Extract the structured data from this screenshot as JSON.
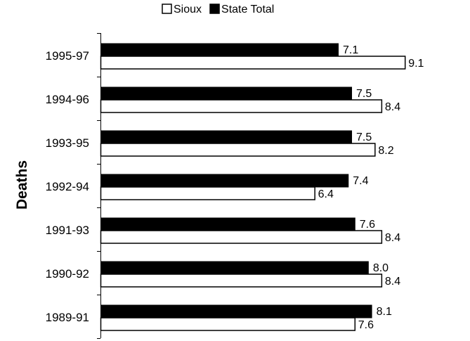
{
  "chart_data": {
    "type": "bar",
    "orientation": "horizontal",
    "title": "",
    "xlabel": "",
    "ylabel": "Deaths",
    "categories": [
      "1995-97",
      "1994-96",
      "1993-95",
      "1992-94",
      "1991-93",
      "1990-92",
      "1989-91"
    ],
    "series": [
      {
        "name": "State Total",
        "color": "#000000",
        "values": [
          7.1,
          7.5,
          7.5,
          7.4,
          7.6,
          8.0,
          8.1
        ]
      },
      {
        "name": "Sioux",
        "color": "#ffffff",
        "values": [
          9.1,
          8.4,
          8.2,
          6.4,
          8.4,
          8.4,
          7.6
        ]
      }
    ],
    "value_labels": [
      [
        "7.1",
        "7.5",
        "7.5",
        "7.4",
        "7.6",
        "8.0",
        "8.1"
      ],
      [
        "9.1",
        "8.4",
        "8.2",
        "6.4",
        "8.4",
        "8.4",
        "7.6"
      ]
    ],
    "xlim": [
      0,
      9.6
    ],
    "x_axis_visible": false,
    "grid": false,
    "legend": {
      "position": "top",
      "order": [
        "Sioux",
        "State Total"
      ]
    }
  }
}
